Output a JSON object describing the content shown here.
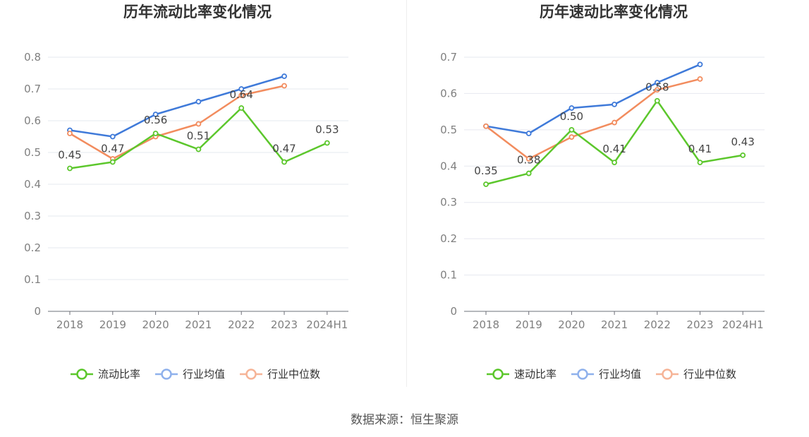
{
  "chart_data": [
    {
      "type": "line",
      "title": "历年流动比率变化情况",
      "categories": [
        "2018",
        "2019",
        "2020",
        "2021",
        "2022",
        "2023",
        "2024H1"
      ],
      "ylim": [
        0,
        0.8
      ],
      "yticks": [
        "0",
        "0.1",
        "0.2",
        "0.3",
        "0.4",
        "0.5",
        "0.6",
        "0.7",
        "0.8"
      ],
      "grid": true,
      "legend_position": "bottom",
      "series": [
        {
          "name": "流动比率",
          "color": "#5cc72c",
          "labeled": true,
          "labels": [
            "0.45",
            "0.47",
            "0.56",
            "0.51",
            "0.64",
            "0.47",
            "0.53"
          ],
          "values": [
            0.45,
            0.47,
            0.56,
            0.51,
            0.64,
            0.47,
            0.53
          ]
        },
        {
          "name": "行业均值",
          "color": "#3f7ad9",
          "labeled": false,
          "values": [
            0.57,
            0.55,
            0.62,
            0.66,
            0.7,
            0.74,
            null
          ]
        },
        {
          "name": "行业中位数",
          "color": "#f28c5e",
          "labeled": false,
          "values": [
            0.56,
            0.48,
            0.55,
            0.59,
            0.68,
            0.71,
            null
          ]
        }
      ]
    },
    {
      "type": "line",
      "title": "历年速动比率变化情况",
      "categories": [
        "2018",
        "2019",
        "2020",
        "2021",
        "2022",
        "2023",
        "2024H1"
      ],
      "ylim": [
        0,
        0.7
      ],
      "yticks": [
        "0",
        "0.1",
        "0.2",
        "0.3",
        "0.4",
        "0.5",
        "0.6",
        "0.7"
      ],
      "grid": true,
      "legend_position": "bottom",
      "series": [
        {
          "name": "速动比率",
          "color": "#5cc72c",
          "labeled": true,
          "labels": [
            "0.35",
            "0.38",
            "0.50",
            "0.41",
            "0.58",
            "0.41",
            "0.43"
          ],
          "values": [
            0.35,
            0.38,
            0.5,
            0.41,
            0.58,
            0.41,
            0.43
          ]
        },
        {
          "name": "行业均值",
          "color": "#3f7ad9",
          "labeled": false,
          "values": [
            0.51,
            0.49,
            0.56,
            0.57,
            0.63,
            0.68,
            null
          ]
        },
        {
          "name": "行业中位数",
          "color": "#f28c5e",
          "labeled": false,
          "values": [
            0.51,
            0.42,
            0.48,
            0.52,
            0.61,
            0.64,
            null
          ]
        }
      ]
    }
  ],
  "footer": {
    "source": "数据来源：恒生聚源"
  }
}
